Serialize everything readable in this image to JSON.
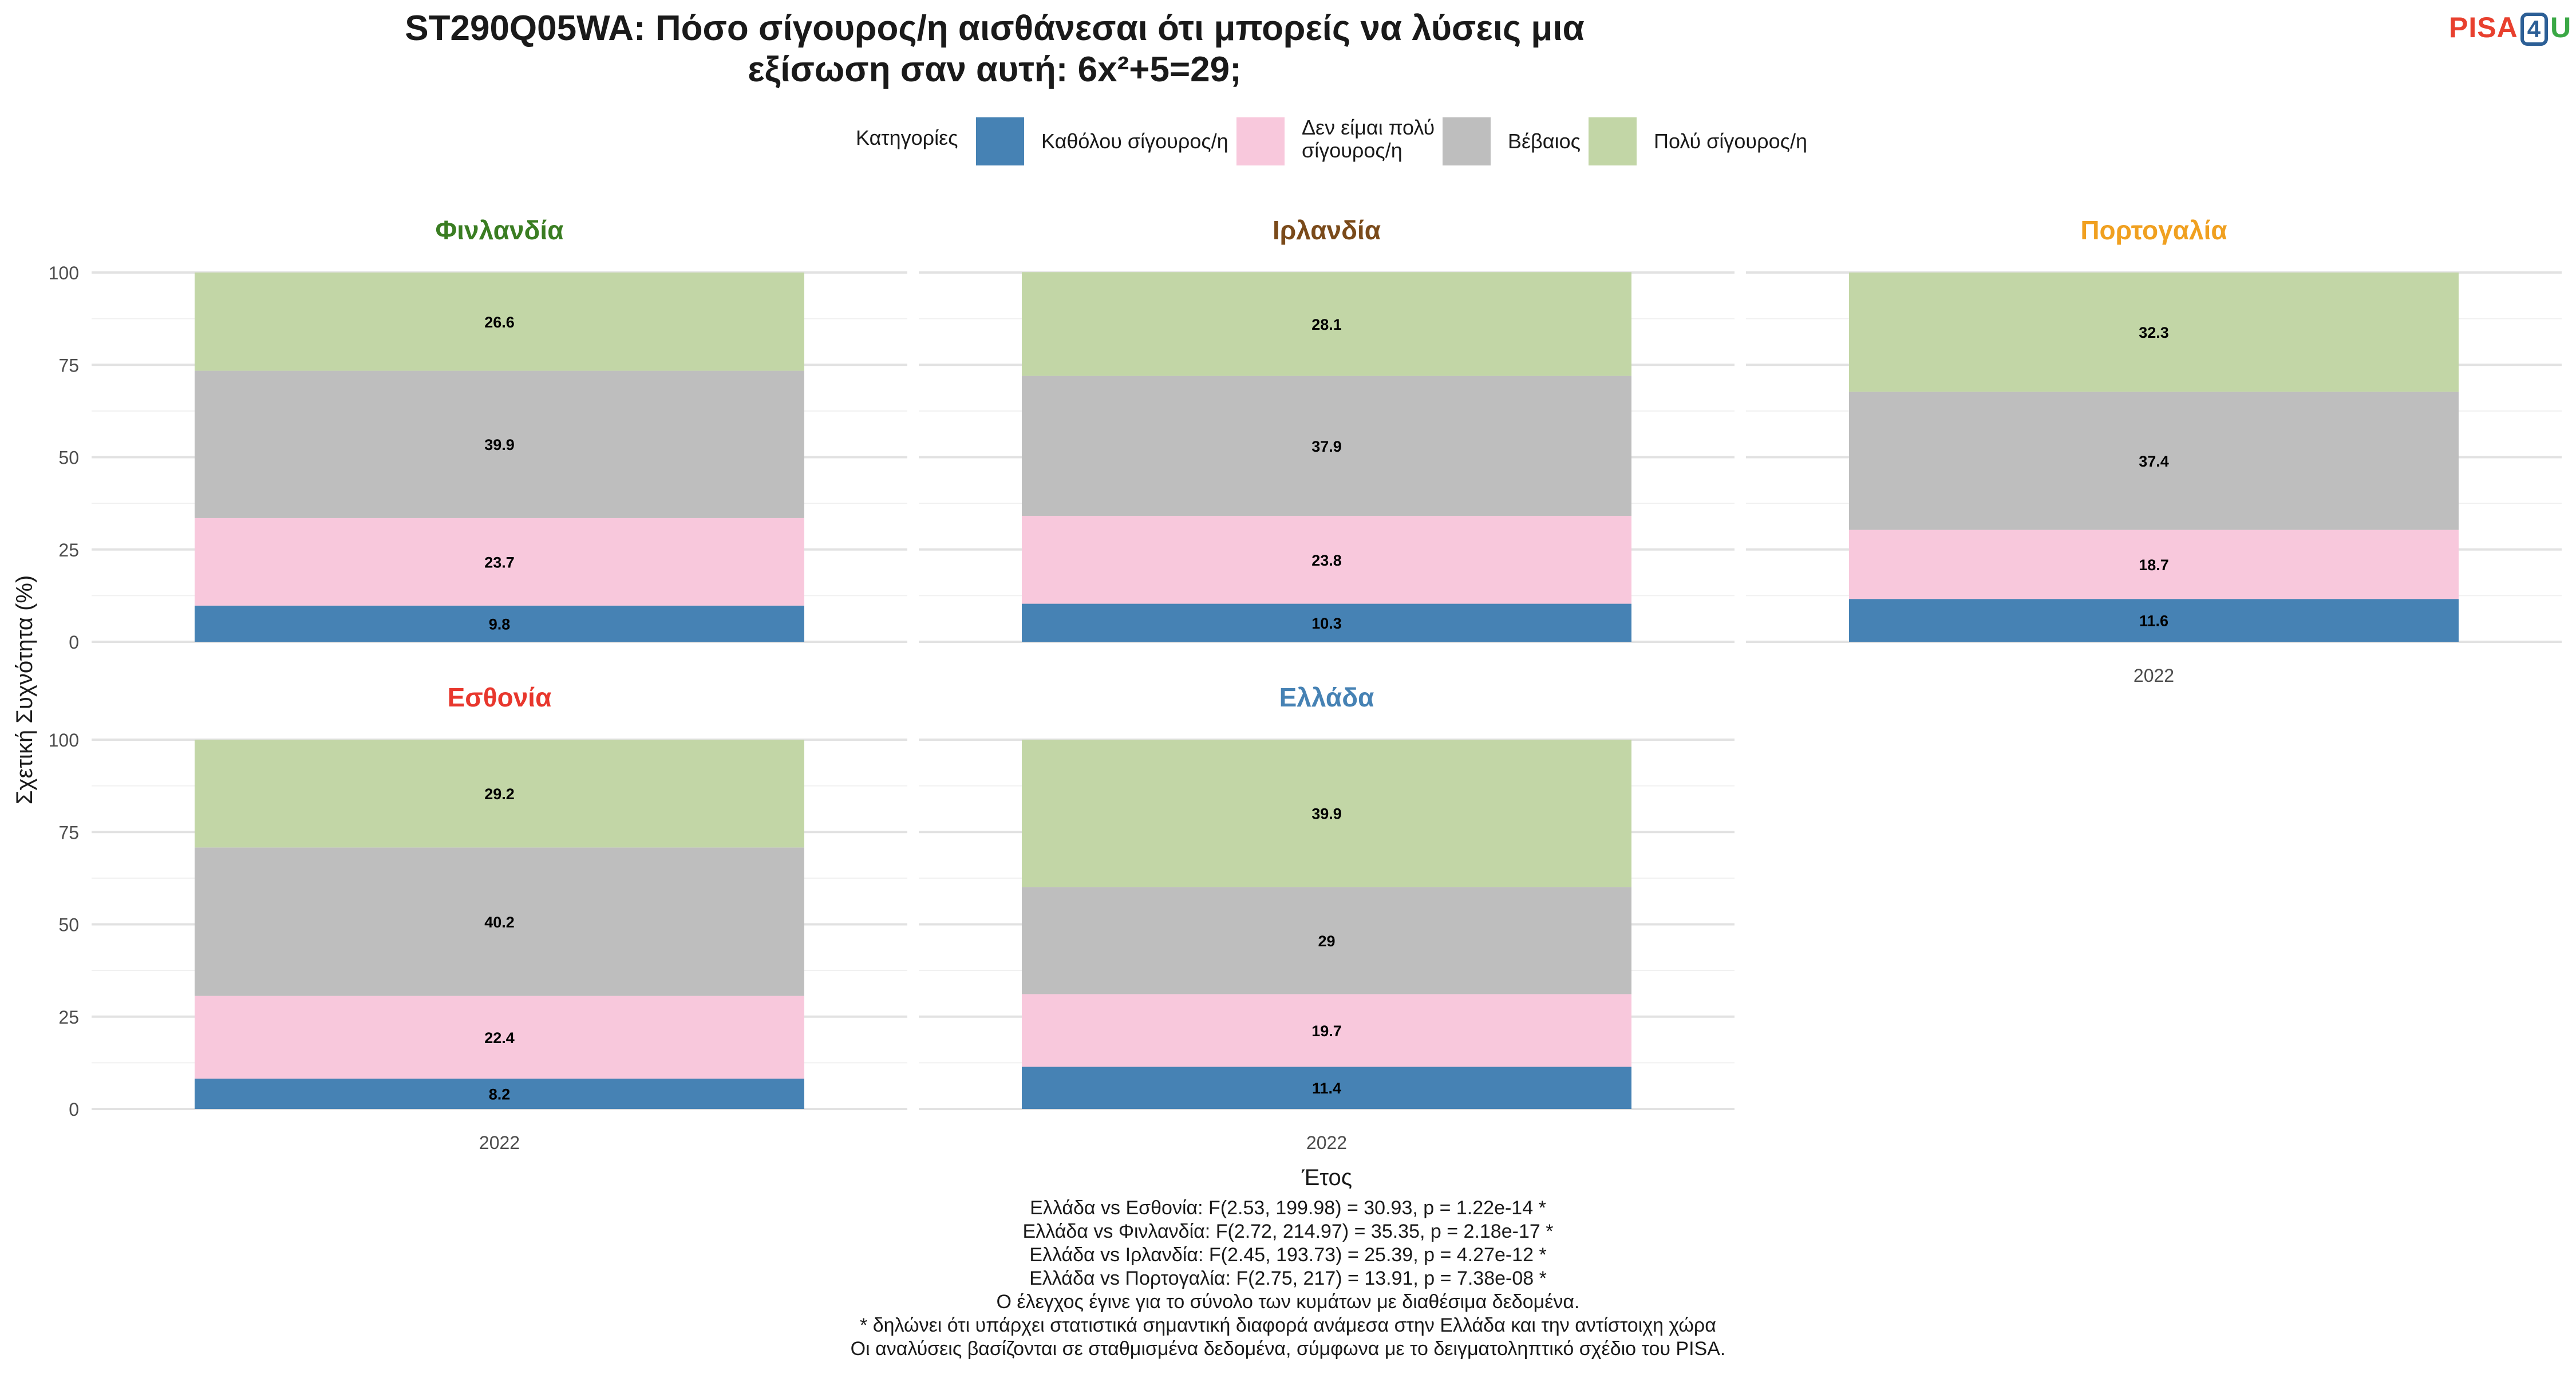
{
  "title_lines": [
    "ST290Q05WA: Πόσο σίγουρος/η αισθάνεσαι ότι μπορείς να λύσεις μια",
    "εξίσωση σαν αυτή: 6x²+5=29;"
  ],
  "logo": {
    "part1": "PISA",
    "part2": "4",
    "part3": "U"
  },
  "legend": {
    "title": "Κατηγορίες",
    "items": [
      {
        "label_lines": [
          "Καθόλου σίγουρος/η"
        ],
        "color": "#4682b4"
      },
      {
        "label_lines": [
          "Δεν είμαι πολύ",
          "σίγουρος/η"
        ],
        "color": "#f8c8dc"
      },
      {
        "label_lines": [
          "Βέβαιος"
        ],
        "color": "#bebebe"
      },
      {
        "label_lines": [
          "Πολύ σίγουρος/η"
        ],
        "color": "#c2d6a6"
      }
    ]
  },
  "chart_data": {
    "type": "bar",
    "stacked": true,
    "faceted": true,
    "xlabel": "Έτος",
    "ylabel": "Σχετική Συχνότητα (%)",
    "ylim": [
      0,
      100
    ],
    "yticks": [
      0,
      25,
      50,
      75,
      100
    ],
    "grid": true,
    "legend_position": "top",
    "series_names": [
      "Καθόλου σίγουρος/η",
      "Δεν είμαι πολύ σίγουρος/η",
      "Βέβαιος",
      "Πολύ σίγουρος/η"
    ],
    "facets": [
      {
        "country": "Φινλανδία",
        "title_color": "#3a7d22",
        "categories": [
          "2022"
        ],
        "show_x_tick": false,
        "values": [
          9.8,
          23.7,
          39.9,
          26.6
        ],
        "labels": [
          "9.8",
          "23.7",
          "39.9",
          "26.6"
        ]
      },
      {
        "country": "Ιρλανδία",
        "title_color": "#7a4a1a",
        "categories": [
          "2022"
        ],
        "show_x_tick": false,
        "values": [
          10.3,
          23.8,
          37.9,
          28.1
        ],
        "labels": [
          "10.3",
          "23.8",
          "37.9",
          "28.1"
        ]
      },
      {
        "country": "Πορτογαλία",
        "title_color": "#f0a020",
        "categories": [
          "2022"
        ],
        "show_x_tick": true,
        "values": [
          11.6,
          18.7,
          37.4,
          32.3
        ],
        "labels": [
          "11.6",
          "18.7",
          "37.4",
          "32.3"
        ]
      },
      {
        "country": "Εσθονία",
        "title_color": "#e8372d",
        "categories": [
          "2022"
        ],
        "show_x_tick": true,
        "values": [
          8.2,
          22.4,
          40.2,
          29.2
        ],
        "labels": [
          "8.2",
          "22.4",
          "40.2",
          "29.2"
        ]
      },
      {
        "country": "Ελλάδα",
        "title_color": "#4682b4",
        "categories": [
          "2022"
        ],
        "show_x_tick": true,
        "values": [
          11.4,
          19.7,
          29,
          39.9
        ],
        "labels": [
          "11.4",
          "19.7",
          "29",
          "39.9"
        ]
      }
    ]
  },
  "notes": [
    "Ελλάδα vs Εσθονία: F(2.53, 199.98) = 30.93, p = 1.22e-14 *",
    "Ελλάδα vs Φινλανδία: F(2.72, 214.97) = 35.35, p = 2.18e-17 *",
    "Ελλάδα vs Ιρλανδία: F(2.45, 193.73) = 25.39, p = 4.27e-12 *",
    "Ελλάδα vs Πορτογαλία: F(2.75, 217) = 13.91, p = 7.38e-08 *",
    "Ο έλεγχος έγινε για το σύνολο των κυμάτων με διαθέσιμα δεδομένα.",
    "* δηλώνει ότι υπάρχει στατιστικά σημαντική διαφορά ανάμεσα στην Ελλάδα και την αντίστοιχη χώρα",
    "Οι αναλύσεις βασίζονται σε σταθμισμένα δεδομένα, σύμφωνα με το δειγματοληπτικό σχέδιο του PISA."
  ]
}
